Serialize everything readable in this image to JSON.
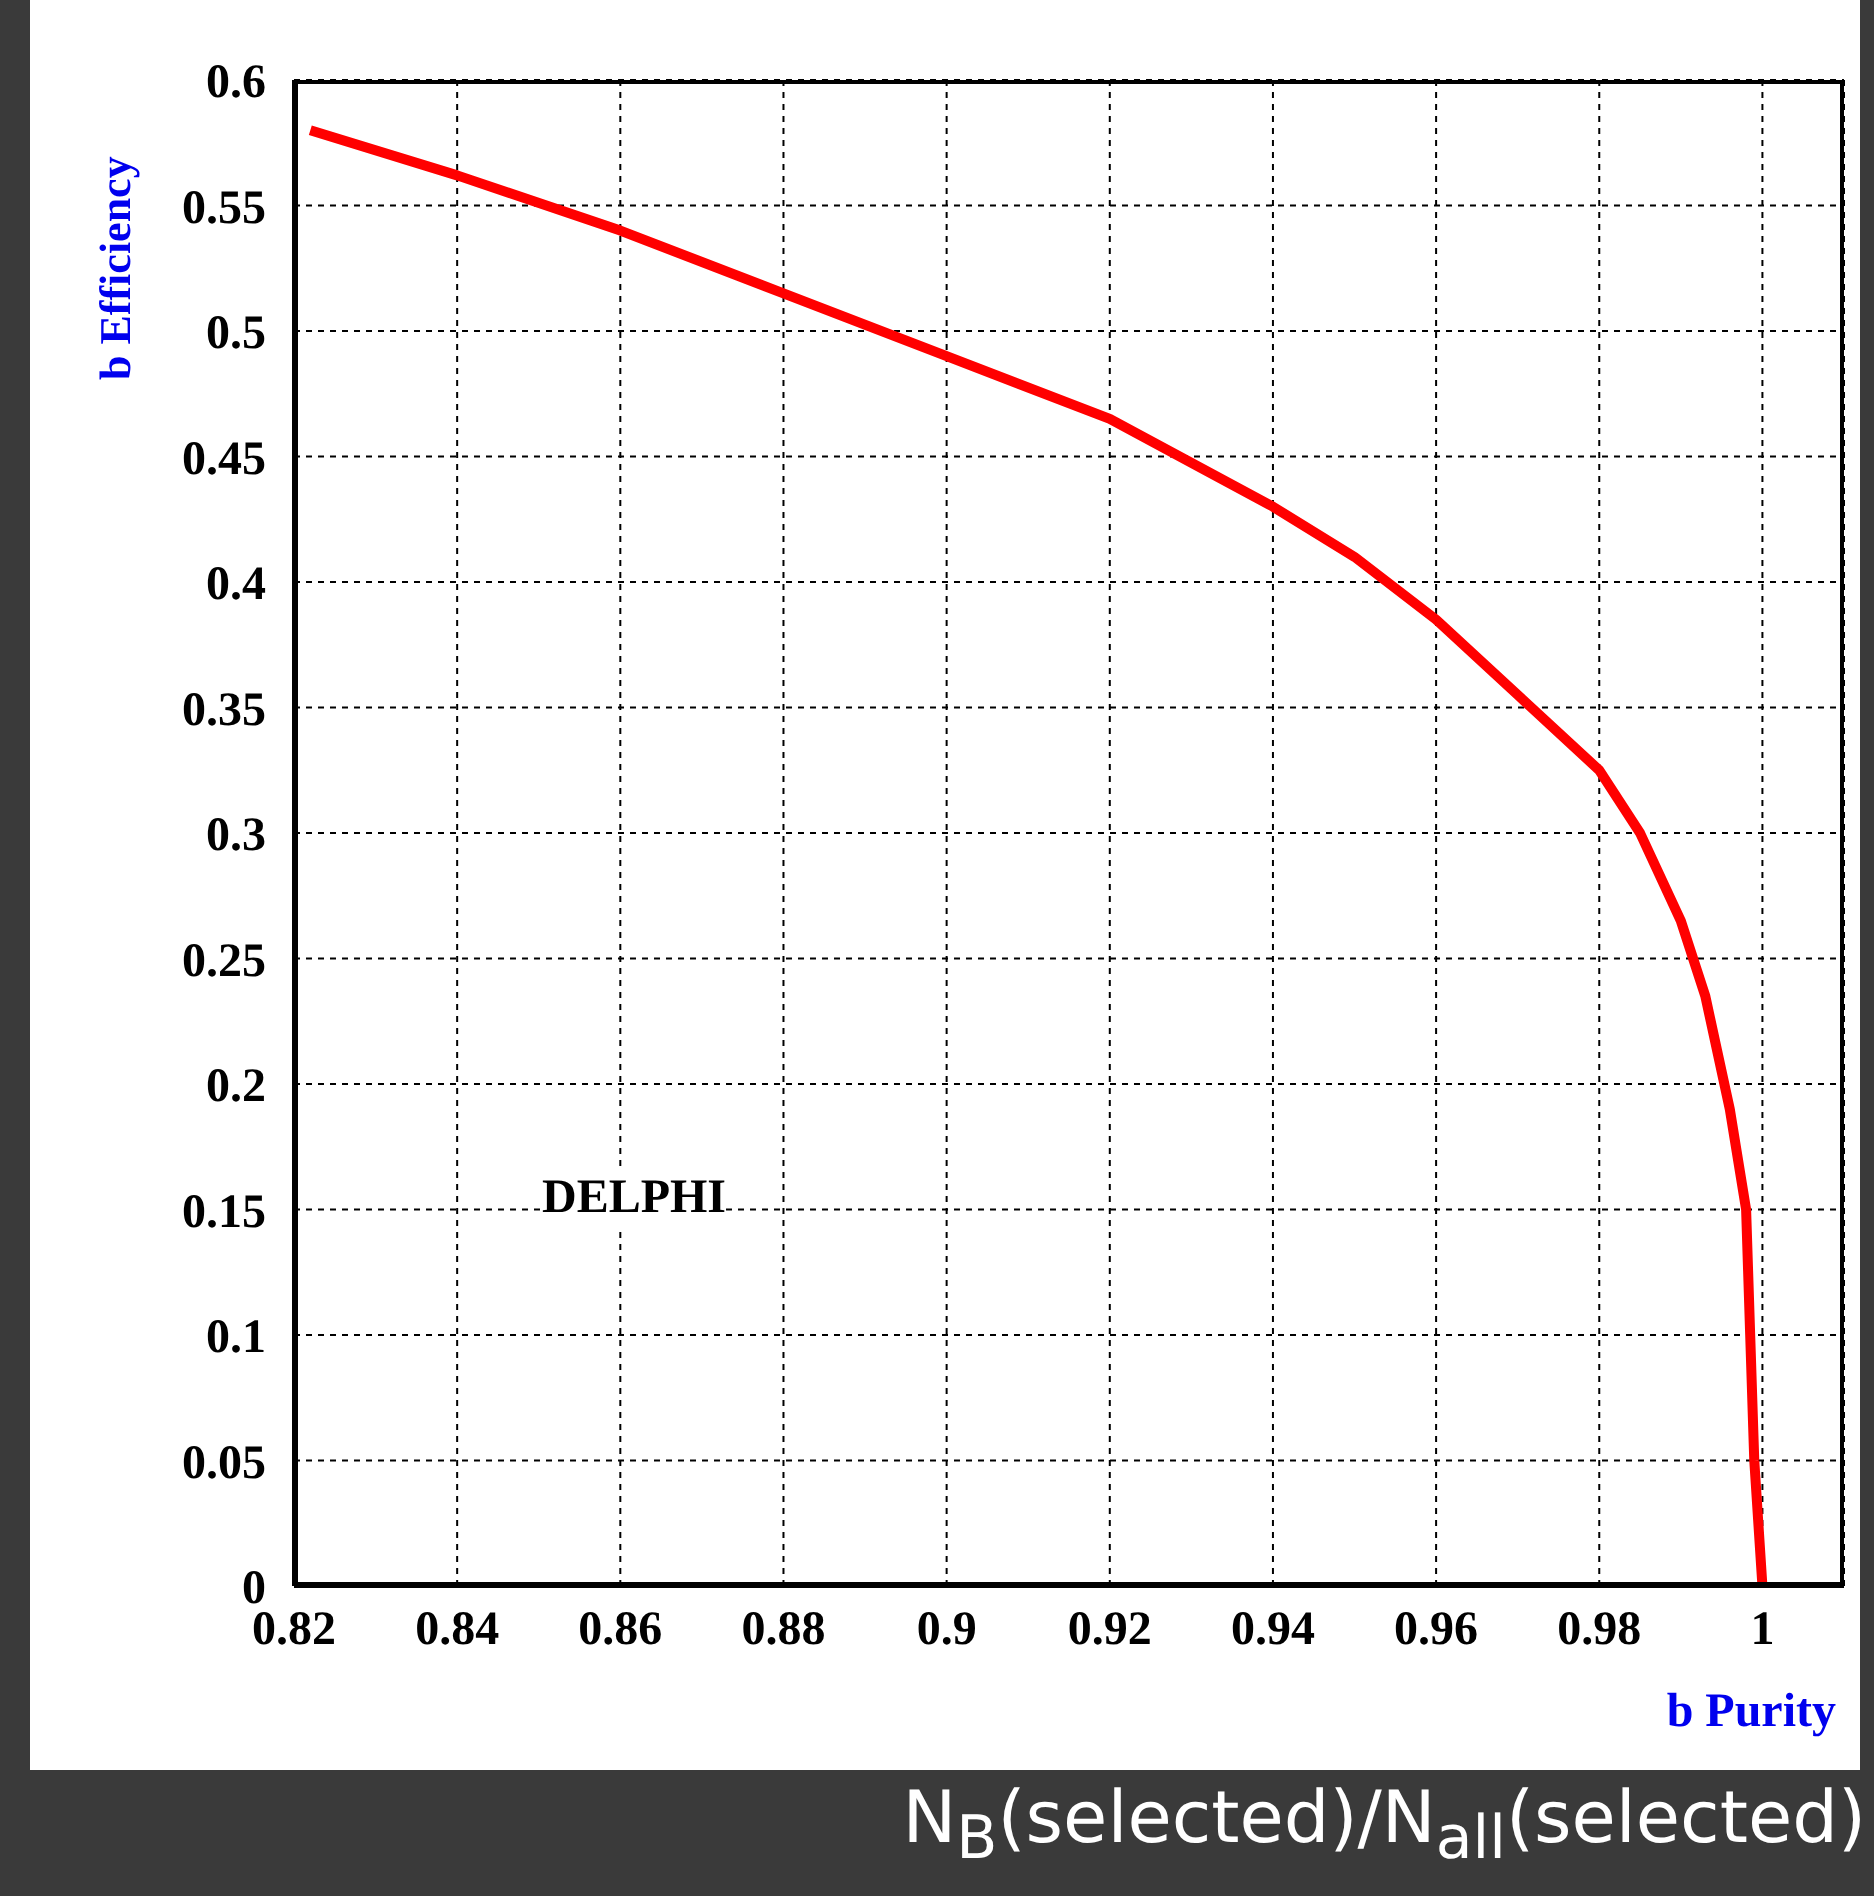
{
  "chart_data": {
    "type": "line",
    "xlabel": "b Purity",
    "ylabel": "b Efficiency",
    "x": [
      0.822,
      0.84,
      0.86,
      0.88,
      0.9,
      0.92,
      0.94,
      0.95,
      0.96,
      0.97,
      0.98,
      0.985,
      0.99,
      0.993,
      0.996,
      0.998,
      0.9985,
      0.999,
      1.0
    ],
    "series": [
      {
        "color": "#ff0000",
        "values": [
          0.58,
          0.562,
          0.54,
          0.515,
          0.49,
          0.465,
          0.43,
          0.41,
          0.385,
          0.355,
          0.325,
          0.3,
          0.265,
          0.235,
          0.19,
          0.15,
          0.1,
          0.05,
          0.0
        ]
      }
    ],
    "xlim": [
      0.82,
      1.01
    ],
    "ylim": [
      0,
      0.6
    ],
    "xticks": [
      0.82,
      0.84,
      0.86,
      0.88,
      0.9,
      0.92,
      0.94,
      0.96,
      0.98,
      1
    ],
    "yticks": [
      0,
      0.05,
      0.1,
      0.15,
      0.2,
      0.25,
      0.3,
      0.35,
      0.4,
      0.45,
      0.5,
      0.55,
      0.6
    ],
    "grid": true,
    "marker": "none",
    "line_style": "solid",
    "annotations": [
      "DELPHI",
      "N$_{B}$(selected)/N$_{all}$(selected)"
    ]
  }
}
